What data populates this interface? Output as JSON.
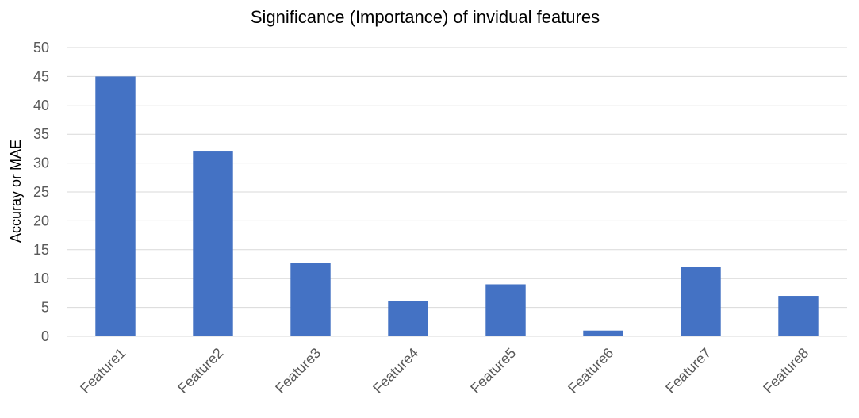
{
  "chart_data": {
    "type": "bar",
    "title": "Significance (Importance) of invidual features",
    "xlabel": "",
    "ylabel": "Accuray or MAE",
    "categories": [
      "Feature1",
      "Feature2",
      "Feature3",
      "Feature4",
      "Feature5",
      "Feature6",
      "Feature7",
      "Feature8"
    ],
    "values": [
      45,
      32,
      12.7,
      6.1,
      9,
      1,
      12,
      7
    ],
    "ylim": [
      0,
      50
    ],
    "yticks": [
      "0",
      "5",
      "10",
      "15",
      "20",
      "25",
      "30",
      "35",
      "40",
      "45",
      "50"
    ],
    "grid": true,
    "legend": "none",
    "bar_color": "#4472C4",
    "grid_color": "#D9D9D9"
  }
}
